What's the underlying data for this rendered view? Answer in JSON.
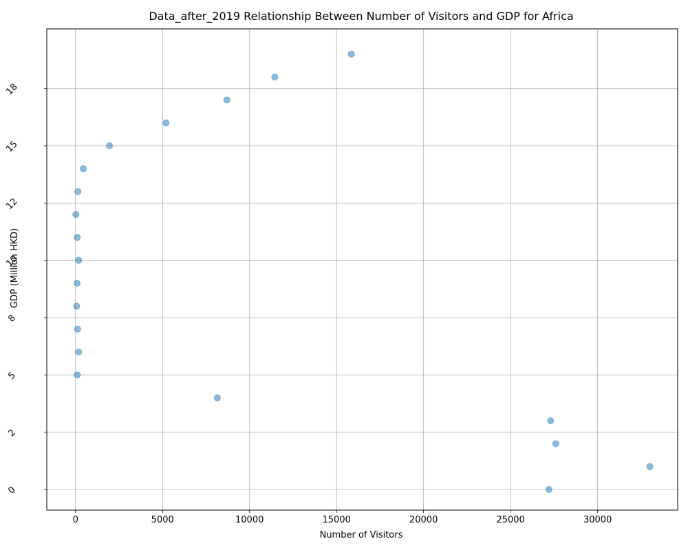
{
  "chart_data": {
    "type": "scatter",
    "title": "Data_after_2019 Relationship Between Number of Visitors and GDP for Africa",
    "xlabel": "Number of Visitors",
    "ylabel": "GDP (Million HKD)",
    "xlim": [
      -1650,
      34600
    ],
    "ylim": [
      -0.9,
      20.1
    ],
    "xticks": [
      0,
      5000,
      10000,
      15000,
      20000,
      25000,
      30000
    ],
    "xtick_labels": [
      "0",
      "5000",
      "10000",
      "15000",
      "20000",
      "25000",
      "30000"
    ],
    "yticks": [
      0,
      2.5,
      5,
      7.5,
      10,
      12.5,
      15,
      17.5
    ],
    "ytick_labels": [
      "0",
      "2",
      "5",
      "8",
      "10",
      "12",
      "15",
      "18"
    ],
    "grid": true,
    "point_color": "#1f77b4",
    "point_alpha": 0.5,
    "points": [
      {
        "x": 27200,
        "y": 0.0
      },
      {
        "x": 33000,
        "y": 1.0
      },
      {
        "x": 27600,
        "y": 2.0
      },
      {
        "x": 27300,
        "y": 3.0
      },
      {
        "x": 8150,
        "y": 4.0
      },
      {
        "x": 100,
        "y": 5.0
      },
      {
        "x": 180,
        "y": 6.0
      },
      {
        "x": 120,
        "y": 7.0
      },
      {
        "x": 60,
        "y": 8.0
      },
      {
        "x": 90,
        "y": 9.0
      },
      {
        "x": 180,
        "y": 10.0
      },
      {
        "x": 100,
        "y": 11.0
      },
      {
        "x": 20,
        "y": 12.0
      },
      {
        "x": 140,
        "y": 13.0
      },
      {
        "x": 450,
        "y": 14.0
      },
      {
        "x": 1950,
        "y": 15.0
      },
      {
        "x": 5200,
        "y": 16.0
      },
      {
        "x": 8700,
        "y": 17.0
      },
      {
        "x": 11450,
        "y": 18.0
      },
      {
        "x": 15850,
        "y": 19.0
      }
    ]
  }
}
